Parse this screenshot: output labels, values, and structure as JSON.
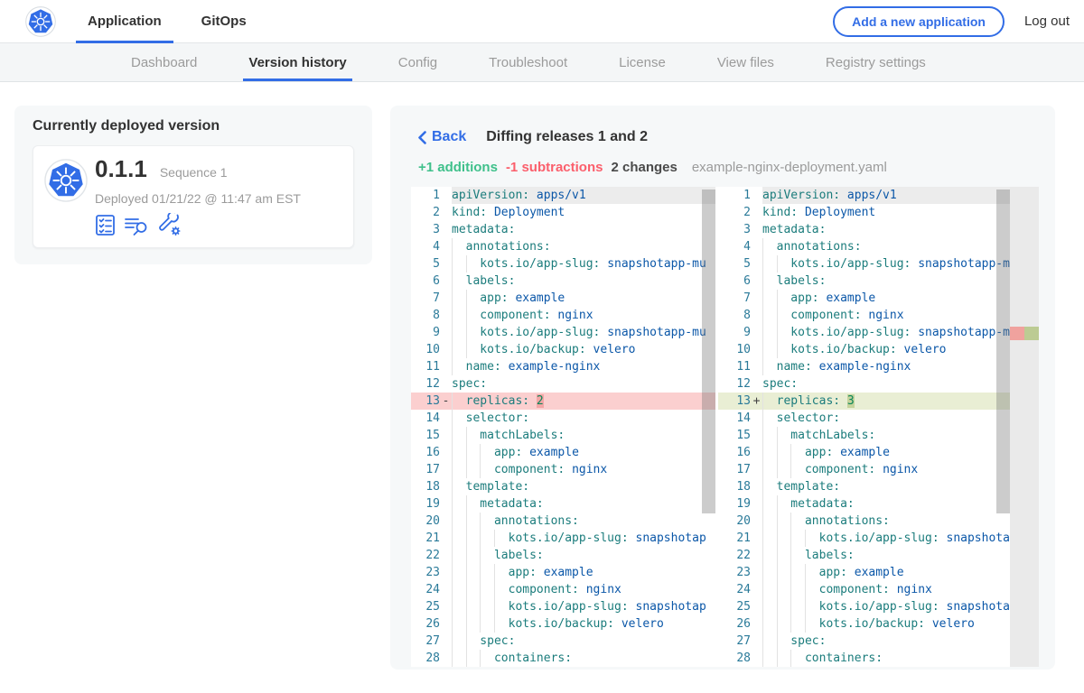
{
  "topnav": {
    "tabs": [
      {
        "label": "Application",
        "active": true
      },
      {
        "label": "GitOps",
        "active": false
      }
    ],
    "add_button_label": "Add a new application",
    "logout_label": "Log out"
  },
  "subnav": {
    "items": [
      {
        "label": "Dashboard",
        "active": false
      },
      {
        "label": "Version history",
        "active": true
      },
      {
        "label": "Config",
        "active": false
      },
      {
        "label": "Troubleshoot",
        "active": false
      },
      {
        "label": "License",
        "active": false
      },
      {
        "label": "View files",
        "active": false
      },
      {
        "label": "Registry settings",
        "active": false
      }
    ]
  },
  "deployed_card": {
    "title": "Currently deployed version",
    "version": "0.1.1",
    "sequence": "Sequence 1",
    "deployed_at": "Deployed 01/21/22 @ 11:47 am EST",
    "action_icons": [
      "release-notes-icon",
      "view-files-icon",
      "edit-config-icon"
    ]
  },
  "diff": {
    "back_label": "Back",
    "title": "Diffing releases 1 and 2",
    "additions": "+1 additions",
    "subtractions": "-1 subtractions",
    "changes": "2 changes",
    "filename": "example-nginx-deployment.yaml",
    "change_line": 13,
    "left": {
      "sign": "-",
      "value": "2"
    },
    "right": {
      "sign": "+",
      "value": "3"
    },
    "lines": [
      [
        1,
        0,
        "apiVersion",
        "apps/v1",
        "str"
      ],
      [
        2,
        0,
        "kind",
        "Deployment",
        "str"
      ],
      [
        3,
        0,
        "metadata",
        "",
        ""
      ],
      [
        4,
        1,
        "annotations",
        "",
        ""
      ],
      [
        5,
        2,
        "kots.io/app-slug",
        "snapshotapp-mu",
        "str"
      ],
      [
        6,
        1,
        "labels",
        "",
        ""
      ],
      [
        7,
        2,
        "app",
        "example",
        "str"
      ],
      [
        8,
        2,
        "component",
        "nginx",
        "str"
      ],
      [
        9,
        2,
        "kots.io/app-slug",
        "snapshotapp-mu",
        "str"
      ],
      [
        10,
        2,
        "kots.io/backup",
        "velero",
        "str"
      ],
      [
        11,
        1,
        "name",
        "example-nginx",
        "str"
      ],
      [
        12,
        0,
        "spec",
        "",
        ""
      ],
      [
        13,
        1,
        "replicas",
        "",
        "num"
      ],
      [
        14,
        1,
        "selector",
        "",
        ""
      ],
      [
        15,
        2,
        "matchLabels",
        "",
        ""
      ],
      [
        16,
        3,
        "app",
        "example",
        "str"
      ],
      [
        17,
        3,
        "component",
        "nginx",
        "str"
      ],
      [
        18,
        1,
        "template",
        "",
        ""
      ],
      [
        19,
        2,
        "metadata",
        "",
        ""
      ],
      [
        20,
        3,
        "annotations",
        "",
        ""
      ],
      [
        21,
        4,
        "kots.io/app-slug",
        "snapshotap",
        "str"
      ],
      [
        22,
        3,
        "labels",
        "",
        ""
      ],
      [
        23,
        4,
        "app",
        "example",
        "str"
      ],
      [
        24,
        4,
        "component",
        "nginx",
        "str"
      ],
      [
        25,
        4,
        "kots.io/app-slug",
        "snapshotap",
        "str"
      ],
      [
        26,
        4,
        "kots.io/backup",
        "velero",
        "str"
      ],
      [
        27,
        2,
        "spec",
        "",
        ""
      ],
      [
        28,
        3,
        "containers",
        "",
        ""
      ]
    ]
  },
  "colors": {
    "accent_blue": "#326de6",
    "addition_green": "#3fc08b",
    "subtraction_red": "#fb5f6c",
    "yaml_key": "#1b7c7c",
    "yaml_string": "#0b57a8",
    "yaml_number": "#098658",
    "line_number": "#2a7a99",
    "deleted_line_bg": "#fbcfcf",
    "inserted_line_bg": "#e9eed4"
  }
}
